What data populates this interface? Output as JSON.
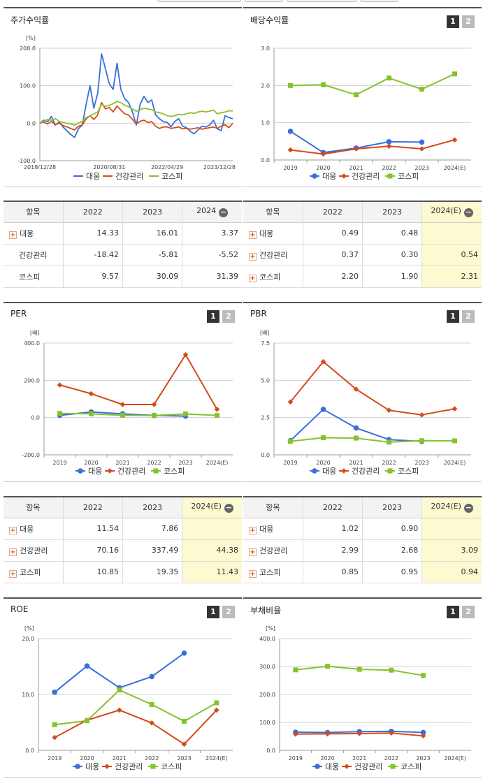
{
  "colors": {
    "daewoong": "#3a6fd8",
    "health": "#d44a1a",
    "kospi": "#86c22e"
  },
  "legend": [
    "대웅",
    "건강관리",
    "코스피"
  ],
  "panels": {
    "stock_return": {
      "title": "주가수익률"
    },
    "dividend": {
      "title": "배당수익률",
      "tab1": "1",
      "tab2": "2"
    },
    "per": {
      "title": "PER",
      "tab1": "1",
      "tab2": "2"
    },
    "pbr": {
      "title": "PBR",
      "tab1": "1",
      "tab2": "2"
    },
    "roe": {
      "title": "ROE",
      "tab1": "1",
      "tab2": "2"
    },
    "debt": {
      "title": "부채비율",
      "tab1": "1",
      "tab2": "2"
    }
  },
  "chart_data": [
    {
      "id": "stock_return",
      "type": "line",
      "unit": "[%]",
      "ylim": [
        -100,
        200
      ],
      "yticks": [
        "200.0",
        "100.0",
        "0.0",
        "-100.0"
      ],
      "xticklabels": [
        "2018/12/28",
        "2020/08/31",
        "2022/04/29",
        "2023/12/28"
      ],
      "x": [
        0,
        2,
        4,
        6,
        8,
        10,
        12,
        14,
        16,
        18,
        20,
        22,
        24,
        26,
        28,
        30,
        32,
        34,
        36,
        38,
        40,
        42,
        44,
        46,
        48,
        50,
        52,
        54,
        56,
        58,
        60,
        62,
        64,
        66,
        68,
        70,
        72,
        74,
        76,
        78,
        80,
        82,
        84,
        86,
        88,
        90,
        92,
        94,
        96,
        98,
        100
      ],
      "series": [
        {
          "name": "대웅",
          "values": [
            0,
            8,
            4,
            18,
            -5,
            3,
            -10,
            -20,
            -30,
            -38,
            -15,
            -5,
            50,
            100,
            40,
            80,
            185,
            145,
            105,
            90,
            160,
            90,
            65,
            55,
            30,
            -5,
            50,
            72,
            55,
            62,
            22,
            12,
            4,
            2,
            -10,
            5,
            12,
            -8,
            -12,
            -22,
            -28,
            -18,
            -8,
            -10,
            -5,
            8,
            -15,
            -20,
            20,
            15,
            12
          ]
        },
        {
          "name": "건강관리",
          "values": [
            0,
            3,
            -2,
            5,
            -4,
            0,
            -6,
            -10,
            -14,
            -18,
            -8,
            -5,
            12,
            20,
            10,
            22,
            55,
            38,
            42,
            30,
            46,
            35,
            25,
            22,
            10,
            -2,
            5,
            8,
            2,
            4,
            -8,
            -14,
            -10,
            -10,
            -14,
            -12,
            -10,
            -15,
            -14,
            -16,
            -14,
            -12,
            -16,
            -14,
            -12,
            -10,
            -14,
            -8,
            -4,
            -12,
            0
          ]
        },
        {
          "name": "코스피",
          "values": [
            0,
            5,
            10,
            8,
            12,
            5,
            2,
            0,
            -2,
            -5,
            0,
            5,
            15,
            20,
            25,
            30,
            50,
            45,
            48,
            52,
            58,
            55,
            48,
            44,
            38,
            32,
            36,
            40,
            38,
            36,
            30,
            28,
            25,
            20,
            18,
            20,
            24,
            22,
            25,
            28,
            26,
            30,
            32,
            30,
            32,
            35,
            25,
            28,
            30,
            33,
            33
          ]
        }
      ]
    },
    {
      "id": "dividend",
      "type": "line",
      "unit": "",
      "ylim": [
        0,
        3
      ],
      "yticks": [
        "3.0",
        "2.0",
        "1.0",
        "0.0"
      ],
      "categories": [
        "2019",
        "2020",
        "2021",
        "2022",
        "2023",
        "2024(E)"
      ],
      "series": [
        {
          "name": "대웅",
          "values": [
            0.77,
            0.2,
            0.32,
            0.49,
            0.48,
            null
          ]
        },
        {
          "name": "건강관리",
          "values": [
            0.27,
            0.16,
            0.3,
            0.37,
            0.3,
            0.54
          ]
        },
        {
          "name": "코스피",
          "values": [
            2.0,
            2.02,
            1.75,
            2.2,
            1.9,
            2.31
          ]
        }
      ]
    },
    {
      "id": "per",
      "type": "line",
      "unit": "[배]",
      "ylim": [
        -200,
        400
      ],
      "yticks": [
        "400.0",
        "200.0",
        "0.0",
        "-200.0"
      ],
      "categories": [
        "2019",
        "2020",
        "2021",
        "2022",
        "2023",
        "2024(E)"
      ],
      "series": [
        {
          "name": "대웅",
          "values": [
            12,
            30,
            20,
            11.54,
            7.86,
            null
          ]
        },
        {
          "name": "건강관리",
          "values": [
            175,
            128,
            70,
            70.16,
            337.49,
            44.38
          ]
        },
        {
          "name": "코스피",
          "values": [
            22,
            20,
            12,
            10.85,
            19.35,
            11.43
          ]
        }
      ]
    },
    {
      "id": "pbr",
      "type": "line",
      "unit": "[배]",
      "ylim": [
        0,
        7.5
      ],
      "yticks": [
        "7.5",
        "5.0",
        "2.5",
        "0.0"
      ],
      "categories": [
        "2019",
        "2020",
        "2021",
        "2022",
        "2023",
        "2024(E)"
      ],
      "series": [
        {
          "name": "대웅",
          "values": [
            0.95,
            3.05,
            1.8,
            1.02,
            0.9,
            null
          ]
        },
        {
          "name": "건강관리",
          "values": [
            3.55,
            6.25,
            4.4,
            2.99,
            2.68,
            3.09
          ]
        },
        {
          "name": "코스피",
          "values": [
            0.9,
            1.15,
            1.12,
            0.85,
            0.95,
            0.94
          ]
        }
      ]
    },
    {
      "id": "roe",
      "type": "line",
      "unit": "[%]",
      "ylim": [
        0,
        20
      ],
      "yticks": [
        "20.0",
        "10.0",
        "0.0"
      ],
      "categories": [
        "2019",
        "2020",
        "2021",
        "2022",
        "2023",
        "2024(E)"
      ],
      "series": [
        {
          "name": "대웅",
          "values": [
            10.4,
            15.1,
            11.2,
            13.2,
            17.4,
            null
          ]
        },
        {
          "name": "건강관리",
          "values": [
            2.3,
            5.4,
            7.2,
            4.9,
            1.1,
            7.2
          ]
        },
        {
          "name": "코스피",
          "values": [
            4.6,
            5.3,
            10.8,
            8.2,
            5.2,
            8.5
          ]
        }
      ]
    },
    {
      "id": "debt",
      "type": "line",
      "unit": "[%]",
      "ylim": [
        0,
        400
      ],
      "yticks": [
        "400.0",
        "300.0",
        "200.0",
        "100.0",
        "0.0"
      ],
      "categories": [
        "2019",
        "2020",
        "2021",
        "2022",
        "2023",
        "2024(E)"
      ],
      "series": [
        {
          "name": "대웅",
          "values": [
            65,
            64,
            67,
            68,
            64,
            null
          ]
        },
        {
          "name": "건강관리",
          "values": [
            58,
            59,
            60,
            62,
            52,
            null
          ]
        },
        {
          "name": "코스피",
          "values": [
            288,
            301,
            290,
            287,
            268,
            null
          ]
        }
      ]
    }
  ],
  "tables": {
    "stock_return": {
      "header": [
        "항목",
        "2022",
        "2023",
        "2024"
      ],
      "rows": [
        {
          "name": "대웅",
          "plus": true,
          "vals": [
            "14.33",
            "16.01",
            "3.37"
          ]
        },
        {
          "name": "건강관리",
          "plus": false,
          "vals": [
            "-18.42",
            "-5.81",
            "-5.52"
          ]
        },
        {
          "name": "코스피",
          "plus": false,
          "vals": [
            "9.57",
            "30.09",
            "31.39"
          ]
        }
      ]
    },
    "dividend": {
      "header": [
        "항목",
        "2022",
        "2023",
        "2024(E)"
      ],
      "rows": [
        {
          "name": "대웅",
          "plus": true,
          "vals": [
            "0.49",
            "0.48",
            ""
          ]
        },
        {
          "name": "건강관리",
          "plus": true,
          "vals": [
            "0.37",
            "0.30",
            "0.54"
          ]
        },
        {
          "name": "코스피",
          "plus": true,
          "vals": [
            "2.20",
            "1.90",
            "2.31"
          ]
        }
      ]
    },
    "per": {
      "header": [
        "항목",
        "2022",
        "2023",
        "2024(E)"
      ],
      "rows": [
        {
          "name": "대웅",
          "plus": true,
          "vals": [
            "11.54",
            "7.86",
            ""
          ]
        },
        {
          "name": "건강관리",
          "plus": true,
          "vals": [
            "70.16",
            "337.49",
            "44.38"
          ]
        },
        {
          "name": "코스피",
          "plus": true,
          "vals": [
            "10.85",
            "19.35",
            "11.43"
          ]
        }
      ]
    },
    "pbr": {
      "header": [
        "항목",
        "2022",
        "2023",
        "2024(E)"
      ],
      "rows": [
        {
          "name": "대웅",
          "plus": true,
          "vals": [
            "1.02",
            "0.90",
            ""
          ]
        },
        {
          "name": "건강관리",
          "plus": true,
          "vals": [
            "2.99",
            "2.68",
            "3.09"
          ]
        },
        {
          "name": "코스피",
          "plus": true,
          "vals": [
            "0.85",
            "0.95",
            "0.94"
          ]
        }
      ]
    }
  }
}
